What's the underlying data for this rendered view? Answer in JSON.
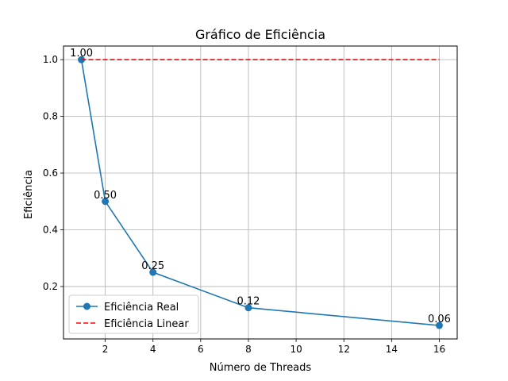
{
  "chart_data": {
    "type": "line",
    "title": "Gráfico de Eficiência",
    "xlabel": "Número de Threads",
    "ylabel": "Eficiência",
    "xlim": [
      0.25,
      16.75
    ],
    "ylim": [
      0.015,
      1.048
    ],
    "xticks": [
      2,
      4,
      6,
      8,
      10,
      12,
      14,
      16
    ],
    "yticks": [
      0.2,
      0.4,
      0.6,
      0.8,
      1.0
    ],
    "ytick_labels": [
      "0.2",
      "0.4",
      "0.6",
      "0.8",
      "1.0"
    ],
    "grid": true,
    "legend_position": "lower-left",
    "series": [
      {
        "name": "Eficiência Real",
        "color": "#1f77b4",
        "style": "solid-with-markers",
        "x": [
          1,
          2,
          4,
          8,
          16
        ],
        "y": [
          1.0,
          0.5,
          0.25,
          0.125,
          0.0625
        ]
      },
      {
        "name": "Eficiência Linear",
        "color": "#ff0000",
        "style": "dashed",
        "x": [
          1,
          16
        ],
        "y": [
          1.0,
          1.0
        ]
      }
    ],
    "data_labels": [
      "1.00",
      "0.50",
      "0.25",
      "0.12",
      "0.06"
    ]
  }
}
